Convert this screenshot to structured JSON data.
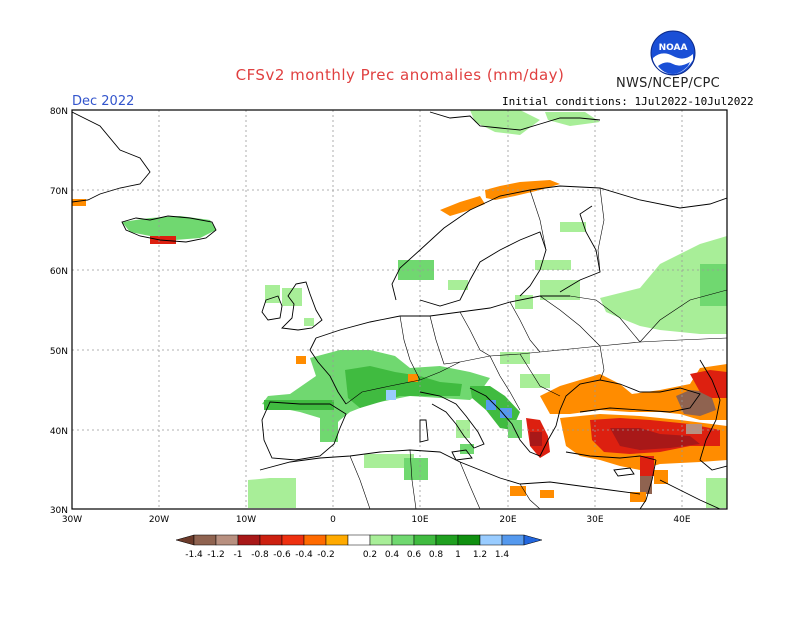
{
  "title": "CFSv2 monthly Prec anomalies (mm/day)",
  "month": "Dec 2022",
  "initial_conditions": "Initial conditions: 1Jul2022-10Jul2022",
  "agency": "NWS/NCEP/CPC",
  "logo_text": "NOAA",
  "map": {
    "lat_ticks": [
      "80N",
      "70N",
      "60N",
      "50N",
      "40N",
      "30N"
    ],
    "lon_ticks": [
      "30W",
      "20W",
      "10W",
      "0",
      "10E",
      "20E",
      "30E",
      "40E"
    ],
    "lat_range": [
      30,
      80
    ],
    "lon_range": [
      -30,
      45
    ]
  },
  "colorbar": {
    "tick_labels": [
      "-1.4",
      "-1.2",
      "-1",
      "-0.8",
      "-0.6",
      "-0.4",
      "-0.2",
      "0.2",
      "0.4",
      "0.6",
      "0.8",
      "1",
      "1.2",
      "1.4"
    ],
    "colors": [
      "#6b3a2a",
      "#8f6350",
      "#b89080",
      "#a81818",
      "#cc2010",
      "#ee3010",
      "#ff6a00",
      "#ffaa00",
      "#ffffff",
      "#a8ee98",
      "#70d870",
      "#40bb40",
      "#20a020",
      "#109010",
      "#99ccff",
      "#5599ee",
      "#2266dd"
    ]
  },
  "legend_colors": {
    "wet_light": "#a8ee98",
    "wet_mid": "#70d870",
    "wet_dark": "#40bb40",
    "blue": "#5599ee",
    "dry_orange": "#ff8c00",
    "dry_red": "#dd2010",
    "dry_darkred": "#a81818",
    "dry_brown": "#8f6350"
  }
}
